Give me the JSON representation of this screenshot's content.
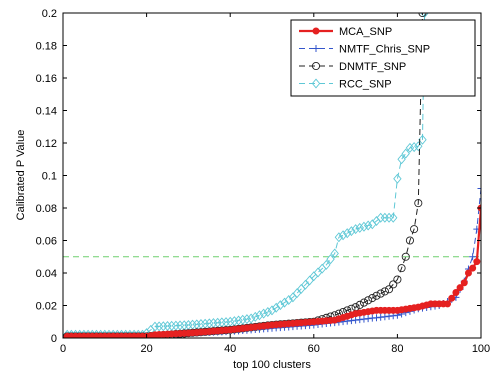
{
  "chart_data": {
    "type": "line",
    "xlabel": "top 100 clusters",
    "ylabel": "Calibrated P Value",
    "xlim": [
      0,
      100
    ],
    "ylim": [
      0,
      0.2
    ],
    "xticks": [
      0,
      20,
      40,
      60,
      80,
      100
    ],
    "yticks": [
      0,
      0.02,
      0.04,
      0.06,
      0.08,
      0.1,
      0.12,
      0.14,
      0.16,
      0.18,
      0.2
    ],
    "grid": false,
    "legend": "top-right",
    "threshold": {
      "y": 0.05,
      "color": "#6fcf6f",
      "style": "dashed"
    },
    "series": [
      {
        "name": "MCA_SNP",
        "color": "#e52121",
        "marker": "filled-circle",
        "line": "solid",
        "knots": [
          [
            1,
            0.001
          ],
          [
            20,
            0.001
          ],
          [
            22,
            0.002
          ],
          [
            30,
            0.003
          ],
          [
            40,
            0.005
          ],
          [
            50,
            0.008
          ],
          [
            60,
            0.01
          ],
          [
            65,
            0.011
          ],
          [
            70,
            0.015
          ],
          [
            75,
            0.017
          ],
          [
            80,
            0.017
          ],
          [
            85,
            0.019
          ],
          [
            88,
            0.021
          ],
          [
            92,
            0.021
          ],
          [
            94,
            0.028
          ],
          [
            96,
            0.034
          ],
          [
            97,
            0.04
          ],
          [
            98,
            0.043
          ],
          [
            99,
            0.047
          ],
          [
            99.5,
            0.065
          ],
          [
            100,
            0.08
          ]
        ]
      },
      {
        "name": "NMTF_Chris_SNP",
        "color": "#3355cc",
        "marker": "plus",
        "line": "dashed",
        "knots": [
          [
            1,
            0.001
          ],
          [
            20,
            0.001
          ],
          [
            25,
            0.002
          ],
          [
            30,
            0.003
          ],
          [
            40,
            0.004
          ],
          [
            50,
            0.006
          ],
          [
            60,
            0.008
          ],
          [
            70,
            0.011
          ],
          [
            80,
            0.014
          ],
          [
            85,
            0.018
          ],
          [
            90,
            0.02
          ],
          [
            94,
            0.025
          ],
          [
            96,
            0.035
          ],
          [
            98,
            0.05
          ],
          [
            99,
            0.067
          ],
          [
            100,
            0.092
          ]
        ]
      },
      {
        "name": "DNMTF_SNP",
        "color": "#222222",
        "marker": "open-circle",
        "line": "dashed",
        "knots": [
          [
            1,
            0.001
          ],
          [
            20,
            0.001
          ],
          [
            25,
            0.002
          ],
          [
            30,
            0.003
          ],
          [
            40,
            0.005
          ],
          [
            50,
            0.008
          ],
          [
            60,
            0.01
          ],
          [
            65,
            0.014
          ],
          [
            70,
            0.019
          ],
          [
            75,
            0.026
          ],
          [
            78,
            0.03
          ],
          [
            80,
            0.036
          ],
          [
            82,
            0.05
          ],
          [
            83,
            0.06
          ],
          [
            84,
            0.067
          ],
          [
            85,
            0.083
          ],
          [
            86,
            0.2
          ]
        ]
      },
      {
        "name": "RCC_SNP",
        "color": "#5fc8d6",
        "marker": "open-diamond",
        "line": "dashed",
        "knots": [
          [
            1,
            0.002
          ],
          [
            19,
            0.002
          ],
          [
            20,
            0.003
          ],
          [
            22,
            0.007
          ],
          [
            30,
            0.008
          ],
          [
            40,
            0.01
          ],
          [
            45,
            0.012
          ],
          [
            50,
            0.017
          ],
          [
            55,
            0.025
          ],
          [
            60,
            0.038
          ],
          [
            63,
            0.045
          ],
          [
            65,
            0.052
          ],
          [
            66,
            0.062
          ],
          [
            70,
            0.067
          ],
          [
            74,
            0.07
          ],
          [
            76,
            0.074
          ],
          [
            79,
            0.074
          ],
          [
            80,
            0.098
          ],
          [
            81,
            0.11
          ],
          [
            83,
            0.117
          ],
          [
            85,
            0.118
          ],
          [
            86,
            0.122
          ],
          [
            86.5,
            0.2
          ]
        ]
      }
    ]
  }
}
